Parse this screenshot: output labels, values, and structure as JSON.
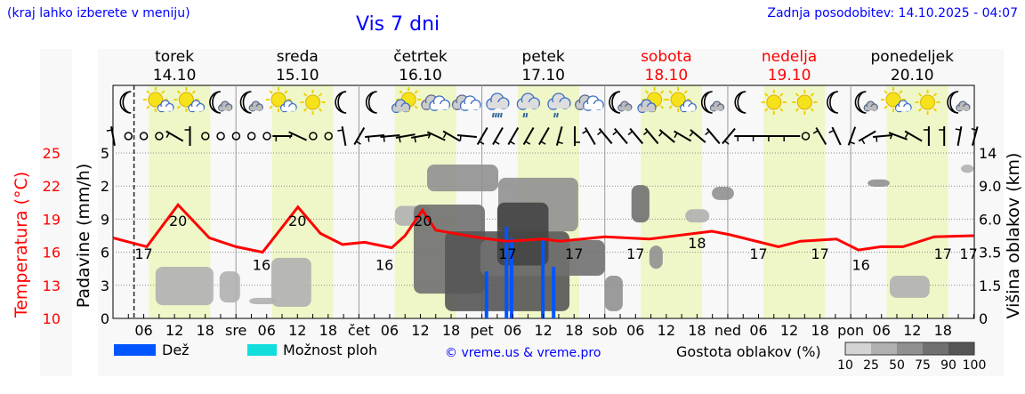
{
  "header": {
    "hint": "(kraj lahko izberete v meniju)",
    "title": "Vis 7 dni",
    "updated": "Zadnja posodobitev: 14.10.2025 - 04:07"
  },
  "days": [
    {
      "name": "torek",
      "date": "14.10",
      "weekend": false
    },
    {
      "name": "sreda",
      "date": "15.10",
      "weekend": false
    },
    {
      "name": "četrtek",
      "date": "16.10",
      "weekend": false
    },
    {
      "name": "petek",
      "date": "17.10",
      "weekend": false
    },
    {
      "name": "sobota",
      "date": "18.10",
      "weekend": true
    },
    {
      "name": "nedelja",
      "date": "19.10",
      "weekend": true
    },
    {
      "name": "ponedeljek",
      "date": "20.10",
      "weekend": false
    }
  ],
  "day_abbr": [
    "",
    "sre",
    "čet",
    "pet",
    "sob",
    "ned",
    "pon"
  ],
  "hour_labels": [
    "06",
    "12",
    "18"
  ],
  "legend": {
    "rain": "Dež",
    "showers": "Možnost ploh",
    "credit": "© vreme.us & vreme.pro",
    "cloud_density": "Gostota oblakov (%)",
    "density_levels": [
      "10",
      "25",
      "50",
      "75",
      "90",
      "100"
    ]
  },
  "colors": {
    "temperature": "#ff0000",
    "rain": "#0055ff",
    "showers": "#11dddd",
    "daylight": "#eff7c8",
    "link": "#0000ff",
    "density": [
      "#d4d4d4",
      "#b0b0b0",
      "#909090",
      "#707070",
      "#555555"
    ]
  },
  "chart_data": {
    "type": "line",
    "title": "Vis 7 dni",
    "x_unit": "hours since 14.10 00:00",
    "xlim": [
      0,
      168
    ],
    "now_hour": 4.1,
    "daylight": [
      [
        7,
        19
      ],
      [
        31,
        43
      ],
      [
        55,
        67
      ],
      [
        79,
        91
      ],
      [
        103,
        115
      ],
      [
        127,
        139
      ],
      [
        151,
        163
      ]
    ],
    "axes": {
      "temperature": {
        "label": "Temperatura (°C)",
        "ticks": [
          "10",
          "13",
          "16",
          "19",
          "22",
          "25"
        ],
        "range": [
          10,
          25
        ]
      },
      "precipitation": {
        "label": "Padavine (mm/h)",
        "ticks": [
          "0",
          "3",
          "6",
          "9",
          "2",
          "5"
        ]
      },
      "cloud_height": {
        "label": "Višina oblakov (km)",
        "ticks": [
          "0",
          "1.5",
          "3.5",
          "6.0",
          "9.0",
          "14"
        ]
      }
    },
    "temperature_series": {
      "name": "Temperatura",
      "points": [
        [
          0,
          17.3
        ],
        [
          6.6,
          16.5
        ],
        [
          12.7,
          20.3
        ],
        [
          18.8,
          17.3
        ],
        [
          24,
          16.5
        ],
        [
          29.2,
          16
        ],
        [
          36.1,
          20.1
        ],
        [
          40.5,
          17.7
        ],
        [
          44.8,
          16.7
        ],
        [
          49.1,
          16.9
        ],
        [
          54.4,
          16.4
        ],
        [
          57,
          17.5
        ],
        [
          60.4,
          19.8
        ],
        [
          63,
          18
        ],
        [
          71.7,
          17.3
        ],
        [
          77,
          17
        ],
        [
          83.9,
          17.2
        ],
        [
          87.3,
          17
        ],
        [
          96,
          17.4
        ],
        [
          104.7,
          17.2
        ],
        [
          116.9,
          17.9
        ],
        [
          120.3,
          17.6
        ],
        [
          129.9,
          16.5
        ],
        [
          134.2,
          17
        ],
        [
          141.2,
          17.2
        ],
        [
          145.5,
          16.2
        ],
        [
          149.9,
          16.5
        ],
        [
          154.2,
          16.5
        ],
        [
          160.3,
          17.4
        ],
        [
          168,
          17.5
        ]
      ]
    },
    "temperature_labels": [
      [
        6,
        "17"
      ],
      [
        12.7,
        "20"
      ],
      [
        29,
        "16"
      ],
      [
        36,
        "20"
      ],
      [
        53,
        "16"
      ],
      [
        60.5,
        "20"
      ],
      [
        77,
        "17"
      ],
      [
        90,
        "17"
      ],
      [
        102,
        "17"
      ],
      [
        114,
        "18"
      ],
      [
        126,
        "17"
      ],
      [
        138,
        "17"
      ],
      [
        146,
        "16"
      ],
      [
        162,
        "17"
      ],
      [
        167,
        "17"
      ]
    ],
    "rain_bars": [
      [
        72.9,
        1.42
      ],
      [
        76.8,
        2.77
      ],
      [
        77.8,
        2.42
      ],
      [
        83.9,
        2.37
      ],
      [
        86,
        1.56
      ]
    ],
    "clouds": [
      [
        8.3,
        19.6,
        0.4,
        1.56,
        25
      ],
      [
        20.8,
        24.8,
        0.48,
        1.42,
        25
      ],
      [
        26.6,
        31.8,
        0.43,
        0.62,
        25
      ],
      [
        30.9,
        38.7,
        0.35,
        1.83,
        25
      ],
      [
        55,
        62,
        2.8,
        3.4,
        25
      ],
      [
        58.7,
        72.6,
        0.75,
        3.44,
        75
      ],
      [
        61.3,
        75.2,
        3.84,
        4.65,
        50
      ],
      [
        75.2,
        90.8,
        2.63,
        4.25,
        50
      ],
      [
        64.8,
        89.1,
        0.22,
        2.63,
        90
      ],
      [
        71.7,
        96,
        1.29,
        2.37,
        75
      ],
      [
        75,
        85,
        1.6,
        3.5,
        100
      ],
      [
        96,
        99.5,
        0.22,
        1.29,
        50
      ],
      [
        101.2,
        104.7,
        2.9,
        4.03,
        75
      ],
      [
        104.7,
        107.3,
        1.5,
        2.2,
        50
      ],
      [
        111.7,
        116.4,
        2.9,
        3.3,
        25
      ],
      [
        116.9,
        121.2,
        3.58,
        3.98,
        50
      ],
      [
        147.3,
        151.6,
        3.98,
        4.2,
        50
      ],
      [
        151.6,
        159.4,
        0.62,
        1.29,
        25
      ],
      [
        165.5,
        168,
        4.4,
        4.65,
        25
      ]
    ],
    "weather_icons": [
      "moon",
      "sun-cloud",
      "sun-cloud",
      "moon-cloud",
      "moon-cloud",
      "sun-cloud",
      "sun",
      "moon",
      "moon",
      "cloud-sun",
      "clouds",
      "clouds",
      "rain-heavy",
      "rain-light",
      "rain-light",
      "clouds",
      "moon-cloud",
      "cloud-sun",
      "sun-cloud",
      "moon-cloud",
      "moon",
      "sun",
      "sun",
      "moon",
      "moon-cloud",
      "sun-cloud",
      "sun",
      "moon-cloud"
    ],
    "wind_dir": [
      350,
      "calm",
      "calm",
      "calm",
      300,
      0,
      "calm",
      "calm",
      "calm",
      "calm",
      "calm",
      270,
      295,
      "calm",
      "calm",
      350,
      210,
      265,
      265,
      260,
      260,
      295,
      300,
      275,
      210,
      210,
      210,
      210,
      210,
      195,
      180,
      330,
      320,
      320,
      320,
      320,
      310,
      300,
      310,
      320,
      220,
      270,
      270,
      270,
      270,
      "calm",
      330,
      335,
      200,
      240,
      265,
      290,
      300,
      0,
      0,
      10,
      15
    ]
  }
}
